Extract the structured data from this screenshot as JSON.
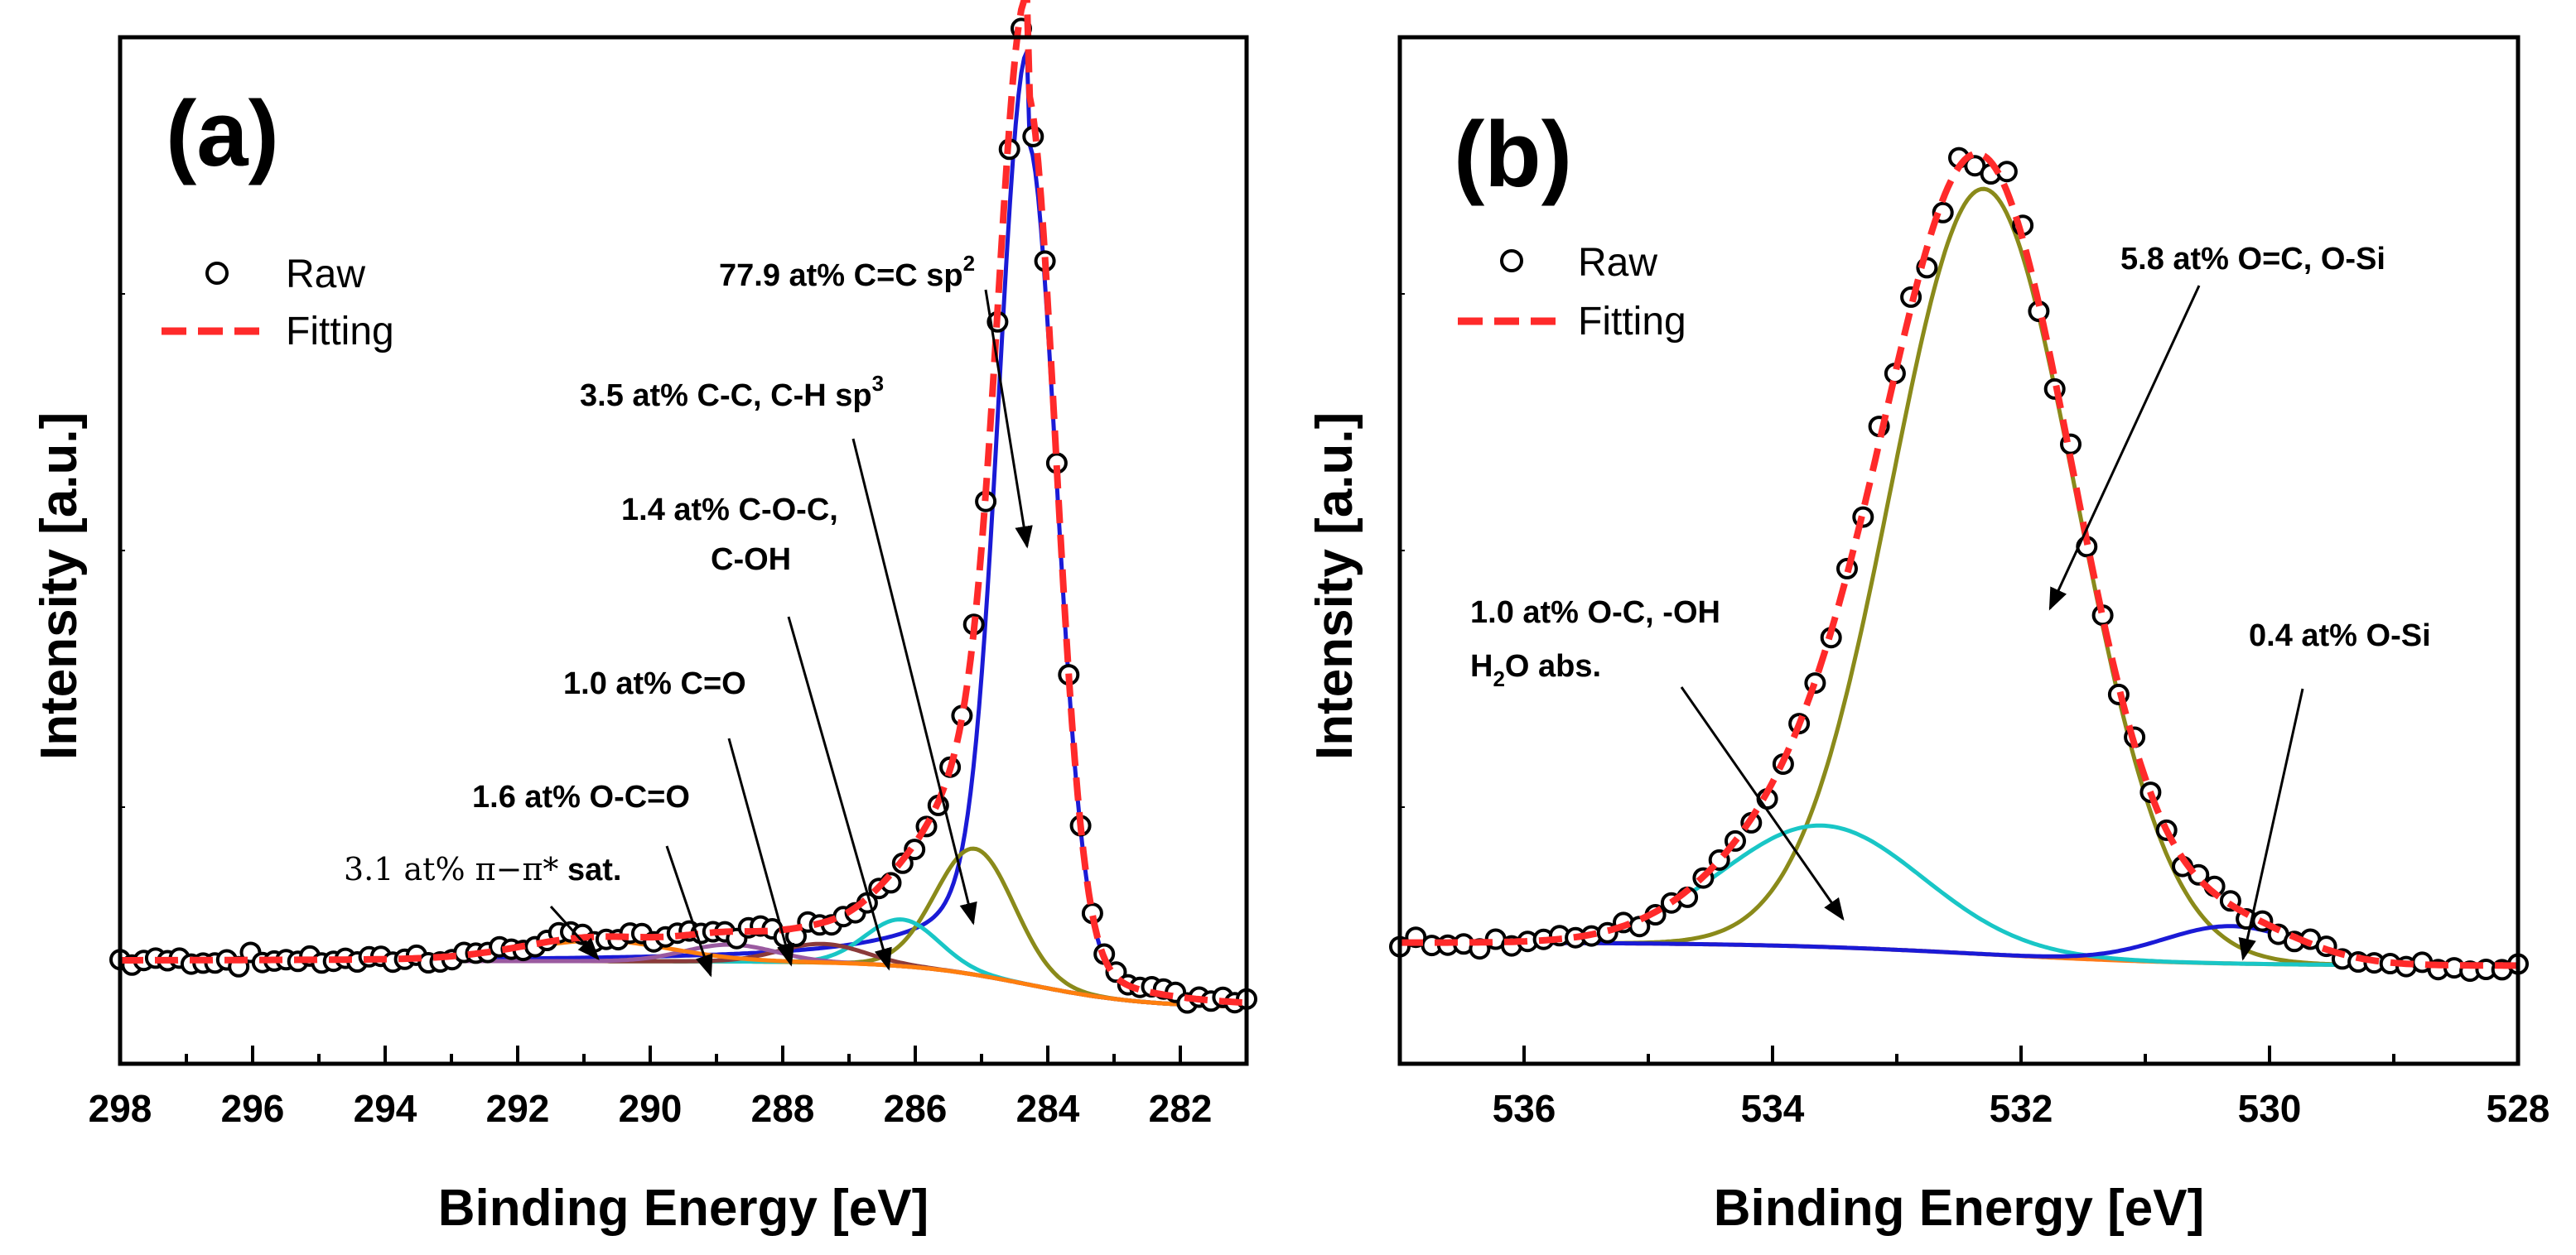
{
  "chart_data": [
    {
      "type": "line",
      "panel_label": "(a)",
      "xlabel": "Binding Energy [eV]",
      "ylabel_main": "Intensity",
      "ylabel_unit": "[a.u.]",
      "xlim": [
        298,
        281
      ],
      "ylim": [
        0,
        1.1
      ],
      "x_ticks": [
        "298",
        "296",
        "294",
        "292",
        "290",
        "288",
        "286",
        "284",
        "282"
      ],
      "legend": {
        "position": "top-left",
        "entries": [
          {
            "label": "Raw",
            "style": "circle"
          },
          {
            "label": "Fitting",
            "style": "dashed",
            "color": "#ff2a2a"
          }
        ]
      },
      "background_left": 0.11,
      "background_right": 0.06,
      "background_step_center": 284.3,
      "components": [
        {
          "name": "C=C sp2",
          "center": 284.3,
          "fwhm": 1.0,
          "height": 0.86,
          "tail": 0.14,
          "color": "#1a1ad6"
        },
        {
          "name": "C-C, C-H sp3",
          "center": 285.1,
          "fwhm": 1.4,
          "height": 0.135,
          "color": "#8a8a1a"
        },
        {
          "name": "C-O-C, C-OH",
          "center": 286.2,
          "fwhm": 1.3,
          "height": 0.05,
          "color": "#19c6c6"
        },
        {
          "name": "C=O",
          "center": 287.4,
          "fwhm": 1.5,
          "height": 0.02,
          "color": "#8b3a3a"
        },
        {
          "name": "O-C=O",
          "center": 288.8,
          "fwhm": 1.6,
          "height": 0.018,
          "color": "#9a5aa0"
        },
        {
          "name": "pi-pi* sat.",
          "center": 290.8,
          "fwhm": 2.6,
          "height": 0.022,
          "color": "#ff7f0e"
        }
      ],
      "annotations": [
        {
          "id": "c_sp2",
          "lines": [
            "77.9 at% C=C sp",
            "2"
          ],
          "superscript": true
        },
        {
          "id": "c_sp3",
          "lines": [
            "3.5 at% C-C, C-H sp",
            "3"
          ],
          "superscript": true
        },
        {
          "id": "c_coc",
          "lines": [
            "1.4 at% C-O-C,",
            "C-OH"
          ]
        },
        {
          "id": "c_co",
          "lines": [
            "1.0 at% C=O"
          ]
        },
        {
          "id": "c_oco",
          "lines": [
            "1.6 at% O-C=O"
          ]
        },
        {
          "id": "c_sat",
          "prefix": "3.1 at% π−π*",
          "suffix": " sat."
        }
      ]
    },
    {
      "type": "line",
      "panel_label": "(b)",
      "xlabel": "Binding Energy [eV]",
      "ylabel_main": "Intensity",
      "ylabel_unit": "[a.u.]",
      "xlim": [
        537,
        528
      ],
      "ylim": [
        0,
        1.1
      ],
      "x_ticks": [
        "536",
        "534",
        "532",
        "530",
        "528"
      ],
      "legend": {
        "position": "top-left",
        "entries": [
          {
            "label": "Raw",
            "style": "circle"
          },
          {
            "label": "Fitting",
            "style": "dashed",
            "color": "#ff2a2a"
          }
        ]
      },
      "background_left": 0.13,
      "background_right": 0.105,
      "background_step_center": 532.3,
      "components": [
        {
          "name": "O=C, O-Si",
          "center": 532.3,
          "fwhm": 1.75,
          "height": 0.82,
          "color": "#8a8a1a"
        },
        {
          "name": "O-C, -OH, H2O abs.",
          "center": 533.6,
          "fwhm": 1.9,
          "height": 0.13,
          "color": "#19c6c6"
        },
        {
          "name": "O-Si",
          "center": 530.3,
          "fwhm": 1.3,
          "height": 0.04,
          "color": "#1a1ad6"
        }
      ],
      "annotations": [
        {
          "id": "o_oc_si",
          "lines": [
            "5.8 at% O=C, O-Si"
          ]
        },
        {
          "id": "o_oh",
          "lines": [
            "1.0 at% O-C, -OH"
          ]
        },
        {
          "id": "o_h2o",
          "prefix": "H",
          "sub": "2",
          "suffix": "O abs."
        },
        {
          "id": "o_si",
          "lines": [
            "0.4 at% O-Si"
          ]
        }
      ]
    }
  ]
}
